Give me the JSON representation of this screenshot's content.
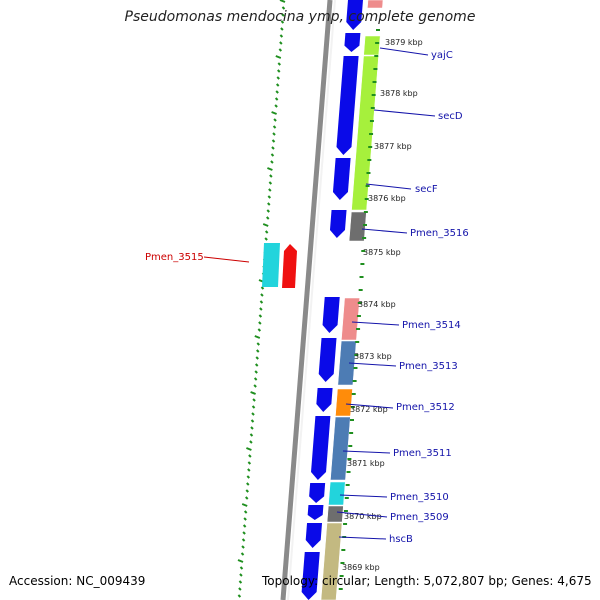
{
  "title": "Pseudomonas mendocina ymp, complete genome",
  "footer": {
    "accession": "Accession: NC_009439",
    "topology": "Topology: circular; Length: 5,072,807 bp; Genes: 4,675"
  },
  "colors": {
    "cds": "#0a0ae8",
    "lime": "#a6f03c",
    "grey": "#6e6e6e",
    "cyan": "#22d4dc",
    "red": "#ef1010",
    "pink": "#ee8c8c",
    "steelblue": "#4d7cb4",
    "orange": "#ff8c0a",
    "khaki": "#c3b981",
    "label_blue": "#1414aa",
    "label_red": "#cc0000",
    "ticks": "#1f8f1f"
  },
  "kbp_labels": [
    "3879 kbp",
    "3878 kbp",
    "3877 kbp",
    "3876 kbp",
    "3875 kbp",
    "3874 kbp",
    "3873 kbp",
    "3872 kbp",
    "3871 kbp",
    "3870 kbp",
    "3869 kbp"
  ],
  "genes": [
    {
      "label": "yajC",
      "color": "label_blue"
    },
    {
      "label": "secD",
      "color": "label_blue"
    },
    {
      "label": "secF",
      "color": "label_blue"
    },
    {
      "label": "Pmen_3516",
      "color": "label_blue"
    },
    {
      "label": "Pmen_3515",
      "color": "label_red"
    },
    {
      "label": "Pmen_3514",
      "color": "label_blue"
    },
    {
      "label": "Pmen_3513",
      "color": "label_blue"
    },
    {
      "label": "Pmen_3512",
      "color": "label_blue"
    },
    {
      "label": "Pmen_3511",
      "color": "label_blue"
    },
    {
      "label": "Pmen_3510",
      "color": "label_blue"
    },
    {
      "label": "Pmen_3509",
      "color": "label_blue"
    },
    {
      "label": "hscB",
      "color": "label_blue"
    }
  ]
}
